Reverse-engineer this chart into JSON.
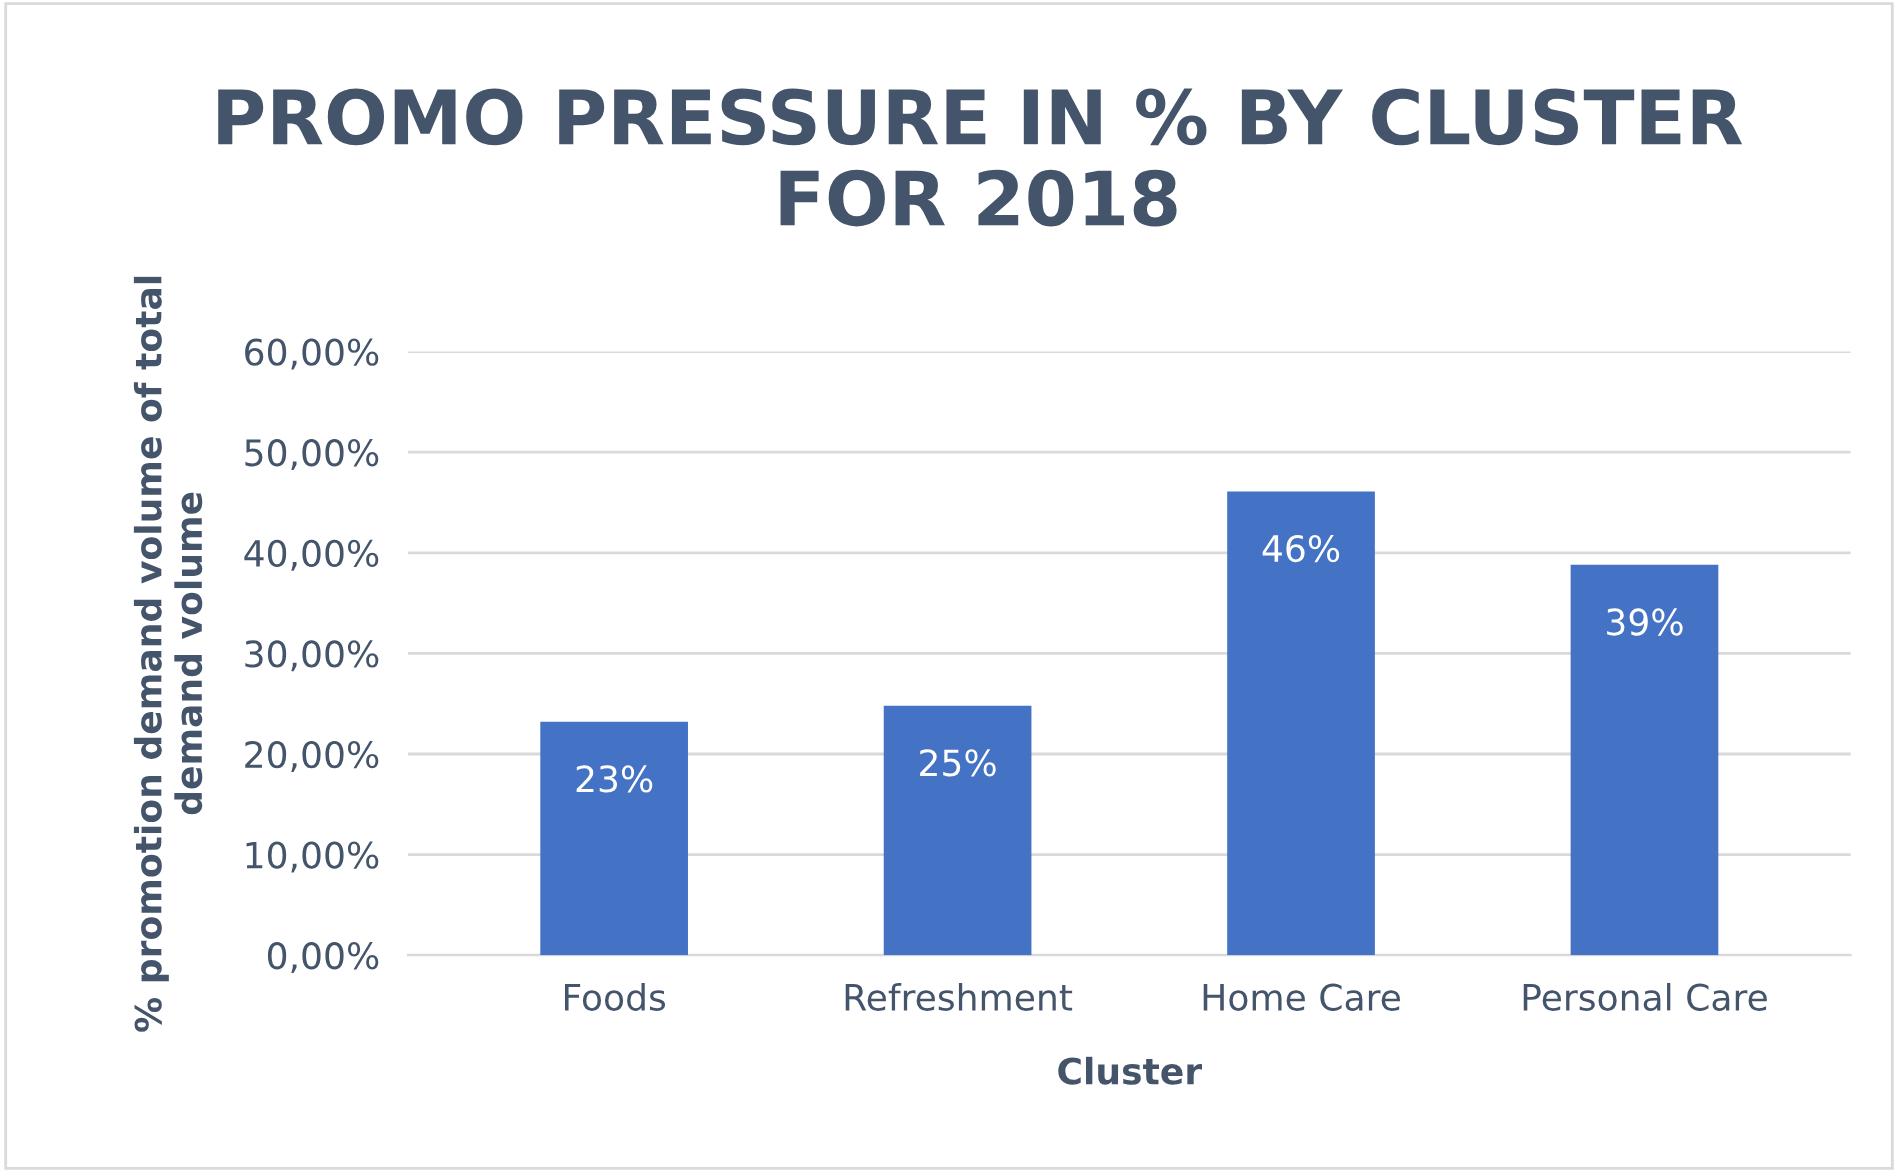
{
  "chart_data": {
    "type": "bar",
    "title": "PROMO PRESSURE IN % BY CLUSTER\nFOR 2018",
    "xlabel": "Cluster",
    "ylabel": "% promotion demand volume of total\ndemand volume",
    "categories": [
      "Foods",
      "Refreshment",
      "Home Care",
      "Personal Care"
    ],
    "values": [
      23.2,
      24.8,
      46.1,
      38.8
    ],
    "value_labels": [
      "23%",
      "25%",
      "46%",
      "39%"
    ],
    "color": "#4472c4",
    "ylim": [
      0,
      60
    ],
    "yticks": [
      {
        "value": 0,
        "label": "0,00%"
      },
      {
        "value": 10,
        "label": "10,00%"
      },
      {
        "value": 20,
        "label": "20,00%"
      },
      {
        "value": 30,
        "label": "30,00%"
      },
      {
        "value": 40,
        "label": "40,00%"
      },
      {
        "value": 50,
        "label": "50,00%"
      },
      {
        "value": 60,
        "label": "60,00%"
      }
    ],
    "grid": "y",
    "legend": false
  }
}
